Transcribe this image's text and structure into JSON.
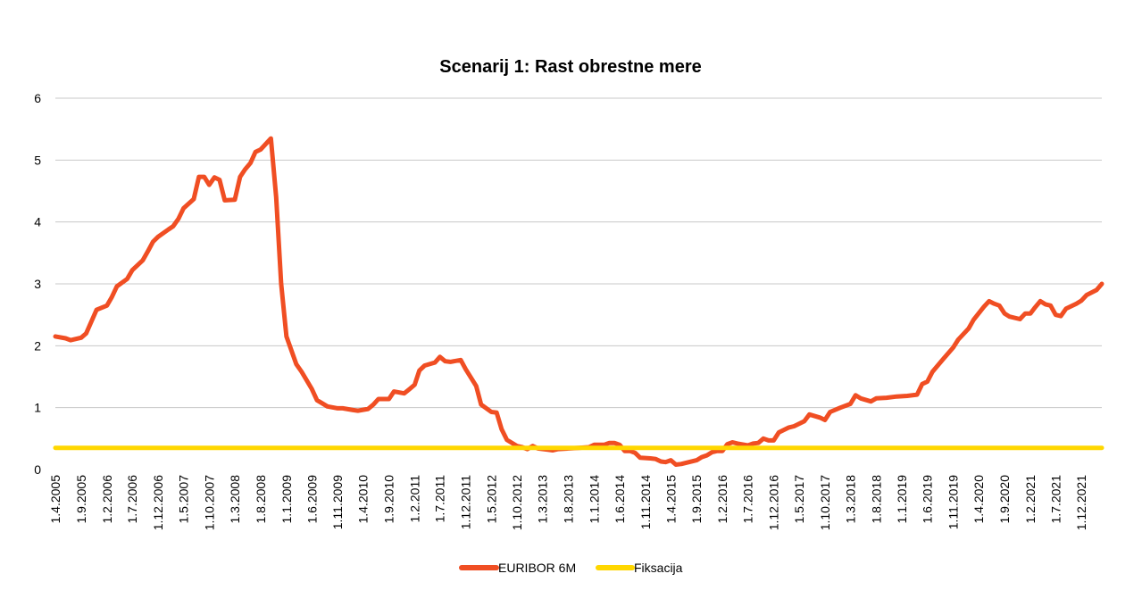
{
  "chart_data": {
    "type": "line",
    "title": "Scenarij 1: Rast obrestne mere",
    "xlabel": "",
    "ylabel": "",
    "ylim": [
      0,
      6
    ],
    "yticks": [
      "0",
      "1",
      "2",
      "3",
      "4",
      "5",
      "6"
    ],
    "grid": true,
    "legend_position": "bottom",
    "x_tick_labels": [
      "1.4.2005",
      "1.9.2005",
      "1.2.2006",
      "1.7.2006",
      "1.12.2006",
      "1.5.2007",
      "1.10.2007",
      "1.3.2008",
      "1.8.2008",
      "1.1.2009",
      "1.6.2009",
      "1.11.2009",
      "1.4.2010",
      "1.9.2010",
      "1.2.2011",
      "1.7.2011",
      "1.12.2011",
      "1.5.2012",
      "1.10.2012",
      "1.3.2013",
      "1.8.2013",
      "1.1.2014",
      "1.6.2014",
      "1.11.2014",
      "1.4.2015",
      "1.9.2015",
      "1.2.2016",
      "1.7.2016",
      "1.12.2016",
      "1.5.2017",
      "1.10.2017",
      "1.3.2018",
      "1.8.2018",
      "1.1.2019",
      "1.6.2019",
      "1.11.2019",
      "1.4.2020",
      "1.9.2020",
      "1.2.2021",
      "1.7.2021",
      "1.12.2021"
    ],
    "x_start": "1.4.2005",
    "x_end": "1.4.2022",
    "series": [
      {
        "name": "EURIBOR 6M",
        "color": "#F04E23",
        "points": [
          [
            "1.4.2005",
            2.15
          ],
          [
            "1.6.2005",
            2.12
          ],
          [
            "1.7.2005",
            2.09
          ],
          [
            "1.9.2005",
            2.13
          ],
          [
            "1.10.2005",
            2.2
          ],
          [
            "1.12.2005",
            2.58
          ],
          [
            "1.2.2006",
            2.65
          ],
          [
            "1.3.2006",
            2.78
          ],
          [
            "1.4.2006",
            2.96
          ],
          [
            "1.6.2006",
            3.08
          ],
          [
            "1.7.2006",
            3.22
          ],
          [
            "1.9.2006",
            3.38
          ],
          [
            "1.10.2006",
            3.52
          ],
          [
            "1.11.2006",
            3.68
          ],
          [
            "1.12.2006",
            3.76
          ],
          [
            "1.2.2007",
            3.88
          ],
          [
            "1.3.2007",
            3.93
          ],
          [
            "1.4.2007",
            4.05
          ],
          [
            "1.5.2007",
            4.22
          ],
          [
            "1.7.2007",
            4.37
          ],
          [
            "1.8.2007",
            4.73
          ],
          [
            "1.9.2007",
            4.73
          ],
          [
            "1.10.2007",
            4.6
          ],
          [
            "1.11.2007",
            4.72
          ],
          [
            "1.12.2007",
            4.68
          ],
          [
            "1.1.2008",
            4.35
          ],
          [
            "1.3.2008",
            4.36
          ],
          [
            "1.4.2008",
            4.73
          ],
          [
            "1.5.2008",
            4.85
          ],
          [
            "1.6.2008",
            4.95
          ],
          [
            "1.7.2008",
            5.13
          ],
          [
            "1.8.2008",
            5.17
          ],
          [
            "1.10.2008",
            5.35
          ],
          [
            "1.11.2008",
            4.4
          ],
          [
            "1.12.2008",
            3.0
          ],
          [
            "1.1.2009",
            2.15
          ],
          [
            "1.3.2009",
            1.7
          ],
          [
            "1.4.2009",
            1.58
          ],
          [
            "1.6.2009",
            1.3
          ],
          [
            "1.7.2009",
            1.12
          ],
          [
            "1.9.2009",
            1.02
          ],
          [
            "1.11.2009",
            0.99
          ],
          [
            "1.12.2009",
            0.99
          ],
          [
            "1.2.2010",
            0.96
          ],
          [
            "1.3.2010",
            0.95
          ],
          [
            "1.5.2010",
            0.98
          ],
          [
            "1.6.2010",
            1.05
          ],
          [
            "1.7.2010",
            1.14
          ],
          [
            "1.9.2010",
            1.14
          ],
          [
            "1.10.2010",
            1.26
          ],
          [
            "1.12.2010",
            1.23
          ],
          [
            "1.1.2011",
            1.3
          ],
          [
            "1.2.2011",
            1.37
          ],
          [
            "1.3.2011",
            1.6
          ],
          [
            "1.4.2011",
            1.68
          ],
          [
            "1.6.2011",
            1.73
          ],
          [
            "1.7.2011",
            1.82
          ],
          [
            "1.8.2011",
            1.75
          ],
          [
            "1.9.2011",
            1.74
          ],
          [
            "1.11.2011",
            1.77
          ],
          [
            "1.12.2011",
            1.62
          ],
          [
            "1.2.2012",
            1.35
          ],
          [
            "1.3.2012",
            1.05
          ],
          [
            "1.5.2012",
            0.93
          ],
          [
            "1.6.2012",
            0.92
          ],
          [
            "1.7.2012",
            0.65
          ],
          [
            "1.8.2012",
            0.48
          ],
          [
            "1.10.2012",
            0.38
          ],
          [
            "1.11.2012",
            0.36
          ],
          [
            "1.12.2012",
            0.33
          ],
          [
            "1.1.2013",
            0.38
          ],
          [
            "1.2.2013",
            0.34
          ],
          [
            "1.4.2013",
            0.32
          ],
          [
            "1.5.2013",
            0.31
          ],
          [
            "1.6.2013",
            0.33
          ],
          [
            "1.8.2013",
            0.34
          ],
          [
            "1.10.2013",
            0.35
          ],
          [
            "1.12.2013",
            0.36
          ],
          [
            "1.1.2014",
            0.4
          ],
          [
            "1.3.2014",
            0.4
          ],
          [
            "1.4.2014",
            0.43
          ],
          [
            "1.5.2014",
            0.43
          ],
          [
            "1.6.2014",
            0.4
          ],
          [
            "1.7.2014",
            0.3
          ],
          [
            "1.8.2014",
            0.3
          ],
          [
            "1.9.2014",
            0.27
          ],
          [
            "1.10.2014",
            0.19
          ],
          [
            "1.12.2014",
            0.18
          ],
          [
            "1.1.2015",
            0.17
          ],
          [
            "1.2.2015",
            0.13
          ],
          [
            "1.3.2015",
            0.12
          ],
          [
            "1.4.2015",
            0.15
          ],
          [
            "1.5.2015",
            0.08
          ],
          [
            "1.6.2015",
            0.09
          ],
          [
            "1.7.2015",
            0.11
          ],
          [
            "1.9.2015",
            0.15
          ],
          [
            "1.10.2015",
            0.2
          ],
          [
            "1.11.2015",
            0.23
          ],
          [
            "1.12.2015",
            0.28
          ],
          [
            "1.1.2016",
            0.3
          ],
          [
            "1.2.2016",
            0.3
          ],
          [
            "1.3.2016",
            0.41
          ],
          [
            "1.4.2016",
            0.44
          ],
          [
            "1.5.2016",
            0.42
          ],
          [
            "1.7.2016",
            0.39
          ],
          [
            "1.8.2016",
            0.42
          ],
          [
            "1.9.2016",
            0.43
          ],
          [
            "1.10.2016",
            0.5
          ],
          [
            "1.11.2016",
            0.47
          ],
          [
            "1.12.2016",
            0.47
          ],
          [
            "1.1.2017",
            0.6
          ],
          [
            "1.3.2017",
            0.68
          ],
          [
            "1.4.2017",
            0.7
          ],
          [
            "1.6.2017",
            0.78
          ],
          [
            "1.7.2017",
            0.89
          ],
          [
            "1.9.2017",
            0.84
          ],
          [
            "1.10.2017",
            0.8
          ],
          [
            "1.11.2017",
            0.93
          ],
          [
            "1.1.2018",
            1.0
          ],
          [
            "1.3.2018",
            1.06
          ],
          [
            "1.4.2018",
            1.2
          ],
          [
            "1.5.2018",
            1.15
          ],
          [
            "1.7.2018",
            1.1
          ],
          [
            "1.8.2018",
            1.15
          ],
          [
            "1.10.2018",
            1.16
          ],
          [
            "1.12.2018",
            1.18
          ],
          [
            "1.2.2019",
            1.19
          ],
          [
            "1.4.2019",
            1.21
          ],
          [
            "1.5.2019",
            1.38
          ],
          [
            "1.6.2019",
            1.42
          ],
          [
            "1.7.2019",
            1.58
          ],
          [
            "1.9.2019",
            1.78
          ],
          [
            "1.11.2019",
            1.97
          ],
          [
            "1.12.2019",
            2.1
          ],
          [
            "1.2.2020",
            2.28
          ],
          [
            "1.3.2020",
            2.42
          ],
          [
            "1.5.2020",
            2.63
          ],
          [
            "1.6.2020",
            2.72
          ],
          [
            "1.7.2020",
            2.68
          ],
          [
            "1.8.2020",
            2.65
          ],
          [
            "1.9.2020",
            2.52
          ],
          [
            "1.10.2020",
            2.47
          ],
          [
            "1.12.2020",
            2.43
          ],
          [
            "1.1.2021",
            2.52
          ],
          [
            "1.2.2021",
            2.52
          ],
          [
            "1.3.2021",
            2.62
          ],
          [
            "1.4.2021",
            2.72
          ],
          [
            "1.5.2021",
            2.67
          ],
          [
            "1.6.2021",
            2.65
          ],
          [
            "1.7.2021",
            2.5
          ],
          [
            "1.8.2021",
            2.48
          ],
          [
            "1.9.2021",
            2.6
          ],
          [
            "1.11.2021",
            2.68
          ],
          [
            "1.12.2021",
            2.73
          ],
          [
            "1.1.2022",
            2.82
          ],
          [
            "1.3.2022",
            2.9
          ],
          [
            "1.4.2022",
            3.0
          ]
        ]
      },
      {
        "name": "Fiksacija",
        "color": "#FFD700",
        "points": [
          [
            "1.4.2005",
            0.35
          ],
          [
            "1.4.2022",
            0.35
          ]
        ]
      }
    ]
  }
}
